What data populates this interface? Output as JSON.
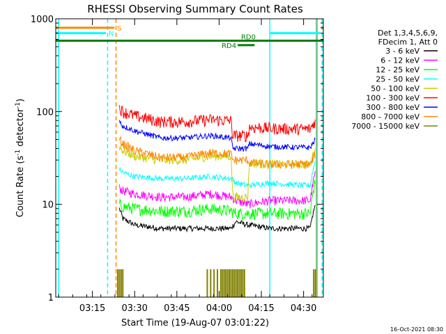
{
  "chart_data": {
    "type": "line",
    "title": "RHESSI Observing Summary Count Rates",
    "xlabel": "Start Time (19-Aug-07 03:01:22)",
    "ylabel_main": "Count Rate (s",
    "ylabel_sup1": "-1",
    "ylabel_mid": " detector",
    "ylabel_sup2": "-1",
    "ylabel_end": ")",
    "y_scale": "log",
    "ylim": [
      1,
      1000
    ],
    "xlim_minutes": [
      3.033,
      4.617
    ],
    "xlim": [
      "03:03",
      "04:38"
    ],
    "x_ticks": [
      {
        "label": "03:15",
        "minute": 3.25
      },
      {
        "label": "03:30",
        "minute": 3.5
      },
      {
        "label": "03:45",
        "minute": 3.75
      },
      {
        "label": "04:00",
        "minute": 4.0
      },
      {
        "label": "04:15",
        "minute": 4.25
      },
      {
        "label": "04:30",
        "minute": 4.5
      }
    ],
    "y_ticks": [
      {
        "label": "1",
        "value": 1
      },
      {
        "label": "10",
        "value": 10
      },
      {
        "label": "100",
        "value": 100
      },
      {
        "label": "1000",
        "value": 1000
      }
    ],
    "legend_position": "right",
    "legend_header": [
      "Det 1,3,4,5,6,9,",
      "FDecim 1, Att 0"
    ],
    "series": [
      {
        "name": "3 - 6 keV",
        "color": "#000000",
        "start": 3.41,
        "end": 4.57,
        "x": [
          3.41,
          3.43,
          3.5,
          3.65,
          3.8,
          3.95,
          4.07,
          4.1,
          4.17,
          4.3,
          4.5,
          4.54,
          4.57
        ],
        "y": [
          9,
          7,
          6,
          5.5,
          5.5,
          5.5,
          5.5,
          6.5,
          6,
          5.5,
          5.5,
          5.5,
          10
        ]
      },
      {
        "name": "6 - 12 keV",
        "color": "#ff00ff",
        "start": 3.41,
        "end": 4.57,
        "x": [
          3.41,
          3.43,
          3.5,
          3.65,
          3.8,
          3.95,
          4.07,
          4.1,
          4.17,
          4.3,
          4.5,
          4.54,
          4.57
        ],
        "y": [
          15,
          14,
          13,
          12,
          12,
          13,
          12,
          11,
          10,
          11,
          11,
          11,
          22
        ]
      },
      {
        "name": "12 - 25 keV",
        "color": "#00ff00",
        "start": 3.41,
        "end": 4.57,
        "x": [
          3.41,
          3.43,
          3.5,
          3.65,
          3.8,
          3.95,
          4.07,
          4.1,
          4.17,
          4.3,
          4.5,
          4.54,
          4.57
        ],
        "y": [
          10,
          9.5,
          9,
          8.5,
          8.5,
          9,
          8.5,
          8,
          8,
          8,
          8,
          8,
          18
        ]
      },
      {
        "name": "25 - 50 keV",
        "color": "#00ffff",
        "start": 3.41,
        "end": 4.57,
        "x": [
          3.41,
          3.43,
          3.5,
          3.65,
          3.8,
          3.95,
          4.07,
          4.1,
          4.17,
          4.3,
          4.5,
          4.54,
          4.57
        ],
        "y": [
          24,
          22,
          20,
          19,
          19,
          20,
          19,
          17,
          16,
          17,
          16,
          16,
          30
        ]
      },
      {
        "name": "50 - 100 keV",
        "color": "#cccc00",
        "start": 3.41,
        "end": 4.57,
        "x": [
          3.41,
          3.43,
          3.5,
          3.65,
          3.8,
          3.95,
          4.07,
          4.08,
          4.17,
          4.18,
          4.3,
          4.5,
          4.54,
          4.57
        ],
        "y": [
          42,
          38,
          33,
          30,
          30,
          33,
          33,
          12,
          12,
          28,
          27,
          27,
          27,
          40
        ]
      },
      {
        "name": "100 - 300 keV",
        "color": "#ff0000",
        "start": 3.41,
        "end": 4.57,
        "x": [
          3.41,
          3.43,
          3.5,
          3.65,
          3.8,
          3.95,
          4.07,
          4.08,
          4.17,
          4.18,
          4.3,
          4.5,
          4.54,
          4.57
        ],
        "y": [
          110,
          100,
          90,
          78,
          78,
          82,
          80,
          55,
          55,
          68,
          66,
          65,
          65,
          80
        ]
      },
      {
        "name": "300 - 800 keV",
        "color": "#0000ff",
        "start": 3.41,
        "end": 4.57,
        "x": [
          3.41,
          3.43,
          3.5,
          3.65,
          3.8,
          3.95,
          4.07,
          4.08,
          4.17,
          4.18,
          4.3,
          4.5,
          4.54,
          4.57
        ],
        "y": [
          78,
          70,
          62,
          52,
          52,
          55,
          52,
          40,
          40,
          45,
          42,
          41,
          41,
          50
        ]
      },
      {
        "name": "800 - 7000 keV",
        "color": "#ff8800",
        "start": 3.41,
        "end": 4.57,
        "x": [
          3.41,
          3.43,
          3.5,
          3.65,
          3.8,
          3.95,
          4.07,
          4.08,
          4.17,
          4.18,
          4.3,
          4.5,
          4.54,
          4.57
        ],
        "y": [
          50,
          45,
          38,
          32,
          32,
          36,
          35,
          30,
          30,
          28,
          27,
          27,
          27,
          35
        ]
      },
      {
        "name": "7000 - 15000 keV",
        "color": "#808000",
        "spikes": [
          3.4,
          3.41,
          3.42,
          3.43,
          3.93,
          3.95,
          3.97,
          3.99,
          4.01,
          4.02,
          4.03,
          4.04,
          4.05,
          4.06,
          4.07,
          4.08,
          4.09,
          4.1,
          4.11,
          4.12,
          4.13,
          4.14,
          4.15,
          4.56,
          4.57
        ],
        "spike_value": 2
      }
    ],
    "flag_bars": [
      {
        "label": "S",
        "color": "#ff8800",
        "x0": 3.033,
        "x1": 3.38,
        "value": 800
      },
      {
        "label": "N",
        "color": "#00ffff",
        "x0": 3.033,
        "x1": 3.33,
        "value": 700
      },
      {
        "label": "",
        "color": "#00ffff",
        "x0": 4.3,
        "x1": 4.6,
        "value": 700
      },
      {
        "label": "",
        "color": "#ff8800",
        "x0": 4.605,
        "x1": 4.617,
        "value": 800
      },
      {
        "label": "RD0",
        "color": "#008000",
        "x0": 3.033,
        "x1": 4.617,
        "value": 580
      },
      {
        "label": "RD4",
        "color": "#008000",
        "x0": 4.11,
        "x1": 4.21,
        "value": 520
      }
    ],
    "vertical_markers": [
      {
        "color": "#00ffff",
        "style": "solid",
        "minute": 3.05
      },
      {
        "color": "#00ffff",
        "style": "dashed",
        "minute": 3.34
      },
      {
        "color": "#ff8800",
        "style": "dashed",
        "minute": 3.39
      },
      {
        "color": "#00ffff",
        "style": "solid",
        "minute": 4.3
      },
      {
        "color": "#00ffff",
        "style": "solid",
        "minute": 4.575
      },
      {
        "color": "#ff8800",
        "style": "solid",
        "minute": 4.58
      },
      {
        "color": "#00ffff",
        "style": "dashed",
        "minute": 4.61
      }
    ]
  },
  "footer_date": "16-Oct-2021 08:30"
}
